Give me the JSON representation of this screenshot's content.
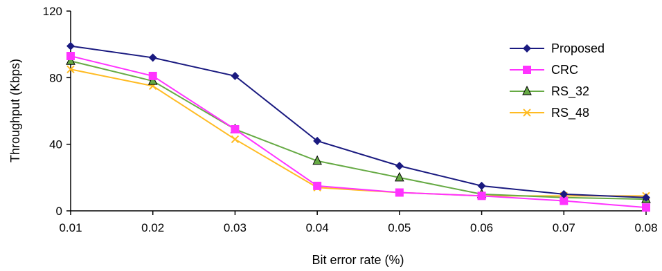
{
  "chart_data": {
    "type": "line",
    "title": "",
    "xlabel": "Bit error rate (%)",
    "ylabel": "Throughput (Kbps)",
    "x": [
      0.01,
      0.02,
      0.03,
      0.04,
      0.05,
      0.06,
      0.07,
      0.08
    ],
    "x_tick_labels": [
      "0.01",
      "0.02",
      "0.03",
      "0.04",
      "0.05",
      "0.06",
      "0.07",
      "0.08"
    ],
    "ylim": [
      0,
      120
    ],
    "y_ticks": [
      0,
      40,
      80,
      120
    ],
    "y_tick_labels": [
      "0",
      "40",
      "80",
      "120"
    ],
    "grid": false,
    "legend_position": "right",
    "series": [
      {
        "name": "Proposed",
        "color": "#1a1a80",
        "marker": "diamond",
        "values": [
          99,
          92,
          81,
          42,
          27,
          15,
          10,
          8
        ]
      },
      {
        "name": "CRC",
        "color": "#ff33ff",
        "marker": "square",
        "values": [
          93,
          81,
          49,
          15,
          11,
          9,
          6,
          2
        ]
      },
      {
        "name": "RS_32",
        "color": "#66aa44",
        "marker": "triangle",
        "values": [
          90,
          78,
          49,
          30,
          20,
          10,
          8,
          7
        ]
      },
      {
        "name": "RS_48",
        "color": "#ffbb22",
        "marker": "x",
        "values": [
          85,
          75,
          43,
          14,
          11,
          9,
          9,
          9
        ]
      }
    ]
  }
}
